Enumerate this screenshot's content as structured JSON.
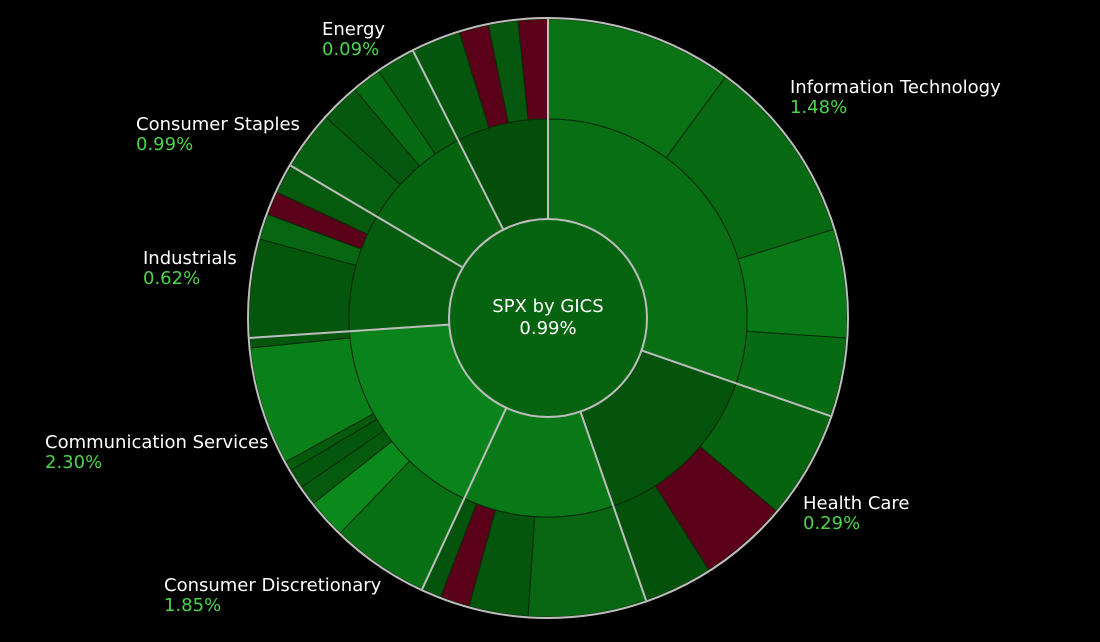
{
  "chart_data": {
    "type": "sunburst",
    "title": "SPX by GICS",
    "total_change": "0.99%",
    "colors": {
      "background": "#000000",
      "separator": "#bdbdbd",
      "positive_light": "#0b8a1c",
      "positive_dark": "#034c0a",
      "negative": "#5a0019",
      "label_text": "#ffffff",
      "value_text": "#4cd44c"
    },
    "sectors": [
      {
        "name": "Information Technology",
        "change": "1.48%",
        "change_pct": 1.48,
        "weight": 28.5,
        "industries": [
          {
            "weight": 24.5,
            "change_pct": 1.5,
            "stocks": [
              {
                "weight": 9.5,
                "change_pct": 1.6
              },
              {
                "weight": 9.5,
                "change_pct": 1.2
              },
              {
                "weight": 5.5,
                "change_pct": 1.9
              }
            ]
          },
          {
            "weight": 4.0,
            "change_pct": 1.3,
            "stocks": [
              {
                "weight": 4.0,
                "change_pct": 1.3
              }
            ]
          }
        ]
      },
      {
        "name": "Health Care",
        "change": "0.29%",
        "change_pct": 0.29,
        "weight": 13.5,
        "industries": [
          {
            "weight": 13.5,
            "change_pct": 0.3,
            "stocks": [
              {
                "weight": 5.5,
                "change_pct": 1.0
              },
              {
                "weight": 4.5,
                "change_pct": -0.9
              },
              {
                "weight": 3.5,
                "change_pct": 0.2
              }
            ]
          }
        ]
      },
      {
        "name": "Consumer Discretionary",
        "change": "1.85%",
        "change_pct": 1.85,
        "weight": 11.5,
        "industries": [
          {
            "weight": 11.5,
            "change_pct": 0.5,
            "stocks": [
              {
                "weight": 6.0,
                "change_pct": 1.1
              },
              {
                "weight": 3.0,
                "change_pct": 0.4
              },
              {
                "weight": 1.5,
                "change_pct": -1.2
              },
              {
                "weight": 1.0,
                "change_pct": 0.3
              }
            ]
          }
        ]
      },
      {
        "name": "Communication Services",
        "change": "2.30%",
        "change_pct": 2.3,
        "weight": 16.0,
        "industries": [
          {
            "weight": 8.0,
            "change_pct": 1.6,
            "stocks": [
              {
                "weight": 5.0,
                "change_pct": 1.5
              },
              {
                "weight": 2.0,
                "change_pct": 2.6
              },
              {
                "weight": 1.0,
                "change_pct": 0.6
              }
            ]
          },
          {
            "weight": 8.0,
            "change_pct": 2.0,
            "stocks": [
              {
                "weight": 1.0,
                "change_pct": 0.4
              },
              {
                "weight": 0.5,
                "change_pct": 0.6
              },
              {
                "weight": 6.0,
                "change_pct": 2.2
              },
              {
                "weight": 0.5,
                "change_pct": 0.4
              }
            ]
          }
        ]
      },
      {
        "name": "Industrials",
        "change": "0.62%",
        "change_pct": 0.62,
        "weight": 9.0,
        "industries": [
          {
            "weight": 9.0,
            "change_pct": 0.4,
            "stocks": [
              {
                "weight": 5.0,
                "change_pct": 0.4
              },
              {
                "weight": 1.3,
                "change_pct": 1.1
              },
              {
                "weight": 1.2,
                "change_pct": -1.0
              },
              {
                "weight": 1.5,
                "change_pct": 0.6
              }
            ]
          }
        ]
      },
      {
        "name": "Consumer Staples",
        "change": "0.99%",
        "change_pct": 0.99,
        "weight": 8.5,
        "industries": [
          {
            "weight": 8.5,
            "change_pct": 0.9,
            "stocks": [
              {
                "weight": 3.0,
                "change_pct": 0.8
              },
              {
                "weight": 2.0,
                "change_pct": 0.5
              },
              {
                "weight": 1.5,
                "change_pct": 1.3
              },
              {
                "weight": 2.0,
                "change_pct": 0.7
              }
            ]
          }
        ]
      },
      {
        "name": "Energy",
        "change": "0.09%",
        "change_pct": 0.09,
        "weight": 7.0,
        "industries": [
          {
            "weight": 4.0,
            "change_pct": 0.4,
            "stocks": [
              {
                "weight": 2.5,
                "change_pct": 0.4
              },
              {
                "weight": 1.5,
                "change_pct": -0.9
              }
            ]
          },
          {
            "weight": 3.0,
            "change_pct": 0.2,
            "stocks": [
              {
                "weight": 1.5,
                "change_pct": 0.5
              },
              {
                "weight": 1.5,
                "change_pct": -1.0
              }
            ]
          }
        ]
      }
    ]
  }
}
